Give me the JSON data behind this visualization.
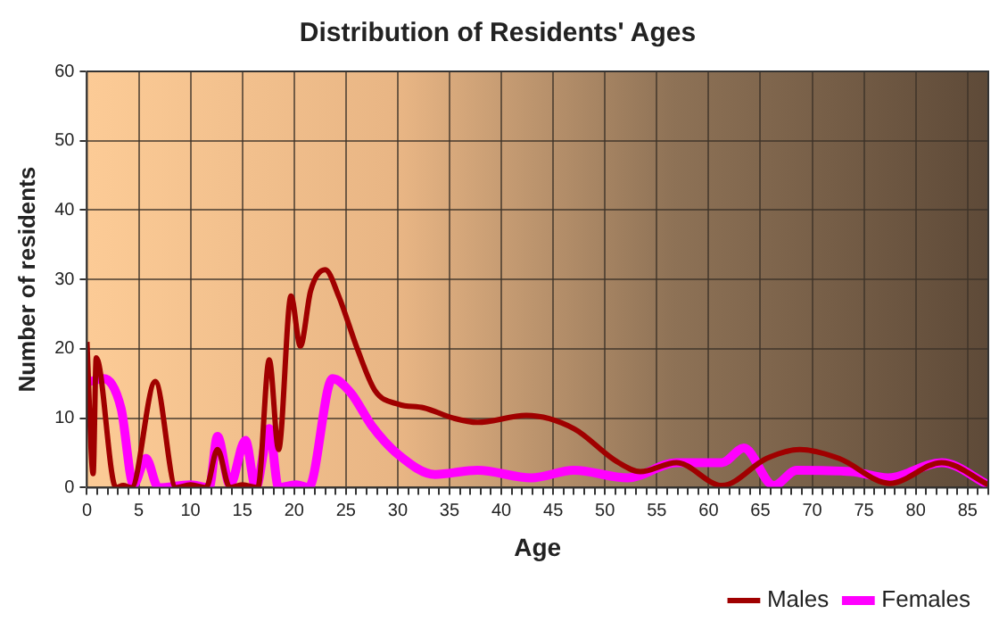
{
  "chart_data": {
    "type": "line",
    "title": "Distribution of Residents' Ages",
    "xlabel": "Age",
    "ylabel": "Number of residents",
    "xlim": [
      0,
      87
    ],
    "xticks": [
      0,
      5,
      10,
      15,
      20,
      25,
      30,
      35,
      40,
      45,
      50,
      55,
      60,
      65,
      70,
      75,
      80,
      85
    ],
    "ylim": [
      0,
      60
    ],
    "yticks": [
      0,
      10,
      20,
      30,
      40,
      50,
      60
    ],
    "grid": true,
    "legend": "bottom right",
    "marker": "none",
    "line_style": "solid",
    "series": [
      {
        "name": "Males",
        "color": "#a00000",
        "x": [
          0,
          0.6,
          0.9,
          2.8,
          3.5,
          4.3,
          6.6,
          8.6,
          10,
          11.5,
          12.6,
          13.8,
          15,
          16.5,
          17.6,
          18.5,
          19.7,
          20.6,
          21.6,
          23,
          24.3,
          26.1,
          27.8,
          30.1,
          32.5,
          35.4,
          37.7,
          42.4,
          47,
          51.1,
          53.4,
          56.9,
          61.3,
          65.6,
          68.8,
          72.6,
          77.5,
          82.5,
          87
        ],
        "values": [
          21,
          2,
          18.7,
          0,
          0.3,
          0,
          15.3,
          0,
          0.4,
          0,
          5.5,
          0,
          0.4,
          0,
          18.4,
          5.5,
          27.6,
          20.4,
          28.4,
          31.4,
          27.6,
          20,
          14,
          12,
          11.5,
          10,
          9.4,
          10.4,
          8.5,
          3.8,
          2.3,
          3.6,
          0.3,
          4.2,
          5.5,
          4.2,
          0.6,
          3.6,
          0.4
        ]
      },
      {
        "name": "Females",
        "color": "#ff00ff",
        "x": [
          0.3,
          1.6,
          3.3,
          4.5,
          5.7,
          6.9,
          10,
          11.8,
          12.6,
          13.8,
          15.3,
          16.3,
          17.6,
          18.5,
          20.2,
          21.4,
          23.7,
          25.5,
          27.5,
          30.1,
          33.6,
          37.7,
          42.9,
          47,
          52.2,
          56.9,
          61.3,
          63.4,
          66.3,
          68.5,
          73.8,
          77.3,
          82.5,
          87
        ],
        "values": [
          15.3,
          15.7,
          11.4,
          0.4,
          4.2,
          0,
          0.4,
          0,
          7.4,
          0.4,
          6.8,
          0,
          8.5,
          0,
          0.4,
          0,
          15.7,
          13.6,
          8.9,
          4.7,
          1.9,
          2.5,
          1.4,
          2.5,
          1.4,
          3.6,
          3.6,
          5.7,
          0.3,
          2.5,
          2.3,
          1.4,
          3.6,
          0.4
        ]
      }
    ]
  }
}
